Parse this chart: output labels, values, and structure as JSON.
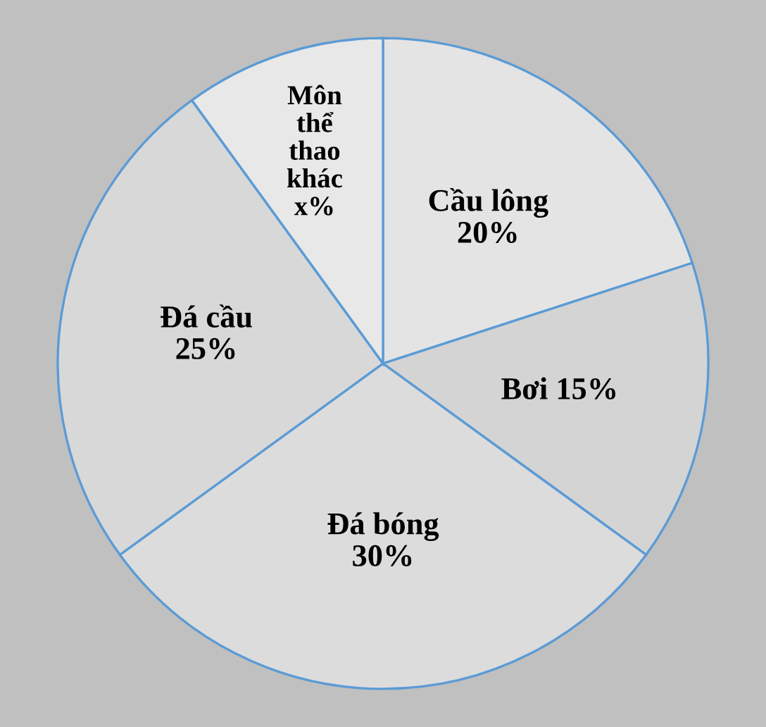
{
  "chart_data": {
    "type": "pie",
    "categories": [
      "Cầu lông",
      "Bơi",
      "Đá bóng",
      "Đá cầu",
      "Môn\nthể\nthao\nkhác"
    ],
    "values": [
      20,
      15,
      30,
      25,
      10
    ],
    "value_labels": [
      "20%",
      "15%",
      "30%",
      "25%",
      "x%"
    ],
    "colors": [
      "#e4e4e4",
      "#d4d4d4",
      "#dcdcdc",
      "#d8d8d8",
      "#e8e8e8"
    ],
    "legend": false
  }
}
